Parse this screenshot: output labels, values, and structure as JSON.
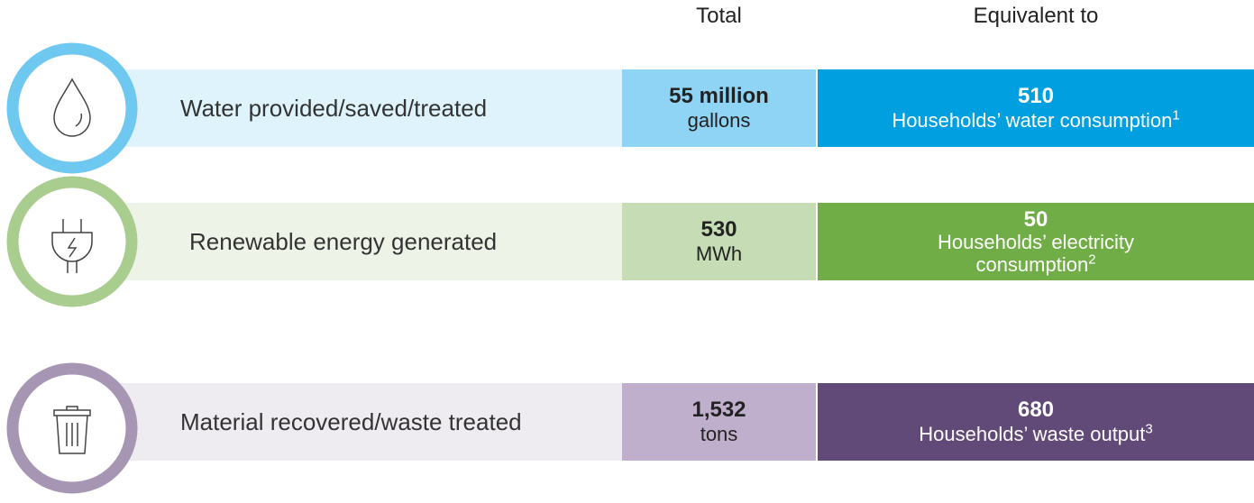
{
  "header": {
    "total": "Total",
    "equivalent": "Equivalent to"
  },
  "rows": [
    {
      "label": "Water provided/saved/treated",
      "total_value": "55 million",
      "total_unit": "gallons",
      "equivalent_value": "510",
      "equivalent_text": "Households’ water consumption",
      "footnote": "1"
    },
    {
      "label": "Renewable energy generated",
      "total_value": "530",
      "total_unit": "MWh",
      "equivalent_value": "50",
      "equivalent_text": "Households’ electricity consumption",
      "footnote": "2"
    },
    {
      "label": "Material recovered/waste treated",
      "total_value": "1,532",
      "total_unit": "tons",
      "equivalent_value": "680",
      "equivalent_text": "Households’ waste output",
      "footnote": "3"
    }
  ]
}
